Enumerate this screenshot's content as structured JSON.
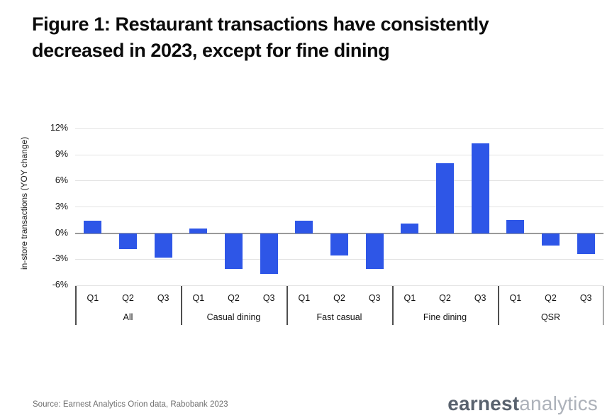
{
  "title": "Figure 1: Restaurant transactions have consistently\ndecreased in 2023, except for fine dining",
  "chart_data": {
    "type": "bar",
    "title": "Figure 1: Restaurant transactions have consistently decreased in 2023, except for fine dining",
    "xlabel": "",
    "ylabel": "in-store transactions (YOY change)",
    "ylim": [
      -6.15,
      13.0
    ],
    "yticks": [
      12,
      9,
      6,
      3,
      0,
      -3,
      -6
    ],
    "ytick_suffix": "%",
    "grid": true,
    "legend": "none",
    "bar_color": "#2e56e7",
    "categories": [
      "Q1",
      "Q2",
      "Q3"
    ],
    "groups": [
      {
        "label": "All",
        "quarters": [
          "Q1",
          "Q2",
          "Q3"
        ],
        "values": [
          1.4,
          -1.8,
          -2.8
        ]
      },
      {
        "label": "Casual dining",
        "quarters": [
          "Q1",
          "Q2",
          "Q3"
        ],
        "values": [
          0.5,
          -4.1,
          -4.7
        ]
      },
      {
        "label": "Fast casual",
        "quarters": [
          "Q1",
          "Q2",
          "Q3"
        ],
        "values": [
          1.4,
          -2.6,
          -4.1
        ]
      },
      {
        "label": "Fine dining",
        "quarters": [
          "Q1",
          "Q2",
          "Q3"
        ],
        "values": [
          1.1,
          8.0,
          10.3
        ]
      },
      {
        "label": "QSR",
        "quarters": [
          "Q1",
          "Q2",
          "Q3"
        ],
        "values": [
          1.5,
          -1.4,
          -2.4
        ]
      }
    ]
  },
  "footer": {
    "source": "Source: Earnest Analytics Orion data, Rabobank 2023",
    "logo": {
      "part1": "earnest",
      "part2": "analytics"
    }
  },
  "colors": {
    "bar": "#2e56e7",
    "gridline": "#e3e3e3",
    "zero_line": "#9a9a9a",
    "bracket_line": "#4f4f4f",
    "title_text": "#0b0b0b",
    "source_text": "#6f6f6f",
    "logo_dark": "#59626e",
    "logo_light": "#adb2ba"
  }
}
